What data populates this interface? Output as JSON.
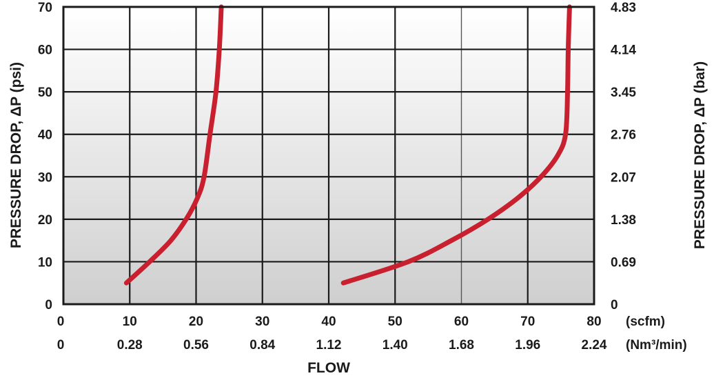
{
  "chart_data": {
    "type": "line",
    "xlabel": "FLOW",
    "x_unit_primary": "(scfm)",
    "x_unit_secondary": "(Nm³/min)",
    "ylabel_left": "PRESSURE DROP, ΔP (psi)",
    "ylabel_right": "PRESSURE DROP, ΔP (bar)",
    "xlim": [
      0,
      80
    ],
    "ylim": [
      0,
      70
    ],
    "x_ticks_scfm": [
      "0",
      "10",
      "20",
      "30",
      "40",
      "50",
      "60",
      "70",
      "80"
    ],
    "x_ticks_nm3": [
      "0",
      "0.28",
      "0.56",
      "0.84",
      "1.12",
      "1.40",
      "1.68",
      "1.96",
      "2.24"
    ],
    "y_ticks_psi": [
      "0",
      "10",
      "20",
      "30",
      "40",
      "50",
      "60",
      "70"
    ],
    "y_ticks_bar": [
      "0",
      "0.69",
      "1.38",
      "2.07",
      "2.76",
      "3.45",
      "4.14",
      "4.83"
    ],
    "grid": true,
    "series": [
      {
        "color": "#c8202f",
        "points": [
          [
            9.5,
            5
          ],
          [
            13,
            10
          ],
          [
            16.2,
            15
          ],
          [
            18.5,
            20
          ],
          [
            20.2,
            25
          ],
          [
            21.2,
            30
          ],
          [
            22.1,
            40
          ],
          [
            23,
            50
          ],
          [
            23.5,
            60
          ],
          [
            23.8,
            70
          ]
        ]
      },
      {
        "color": "#c8202f",
        "points": [
          [
            42.2,
            5
          ],
          [
            52,
            10
          ],
          [
            58.5,
            15
          ],
          [
            64,
            20
          ],
          [
            68.5,
            25
          ],
          [
            72,
            30
          ],
          [
            74.5,
            35
          ],
          [
            75.7,
            40
          ],
          [
            76,
            50
          ],
          [
            76.1,
            60
          ],
          [
            76.3,
            70
          ]
        ]
      }
    ]
  }
}
